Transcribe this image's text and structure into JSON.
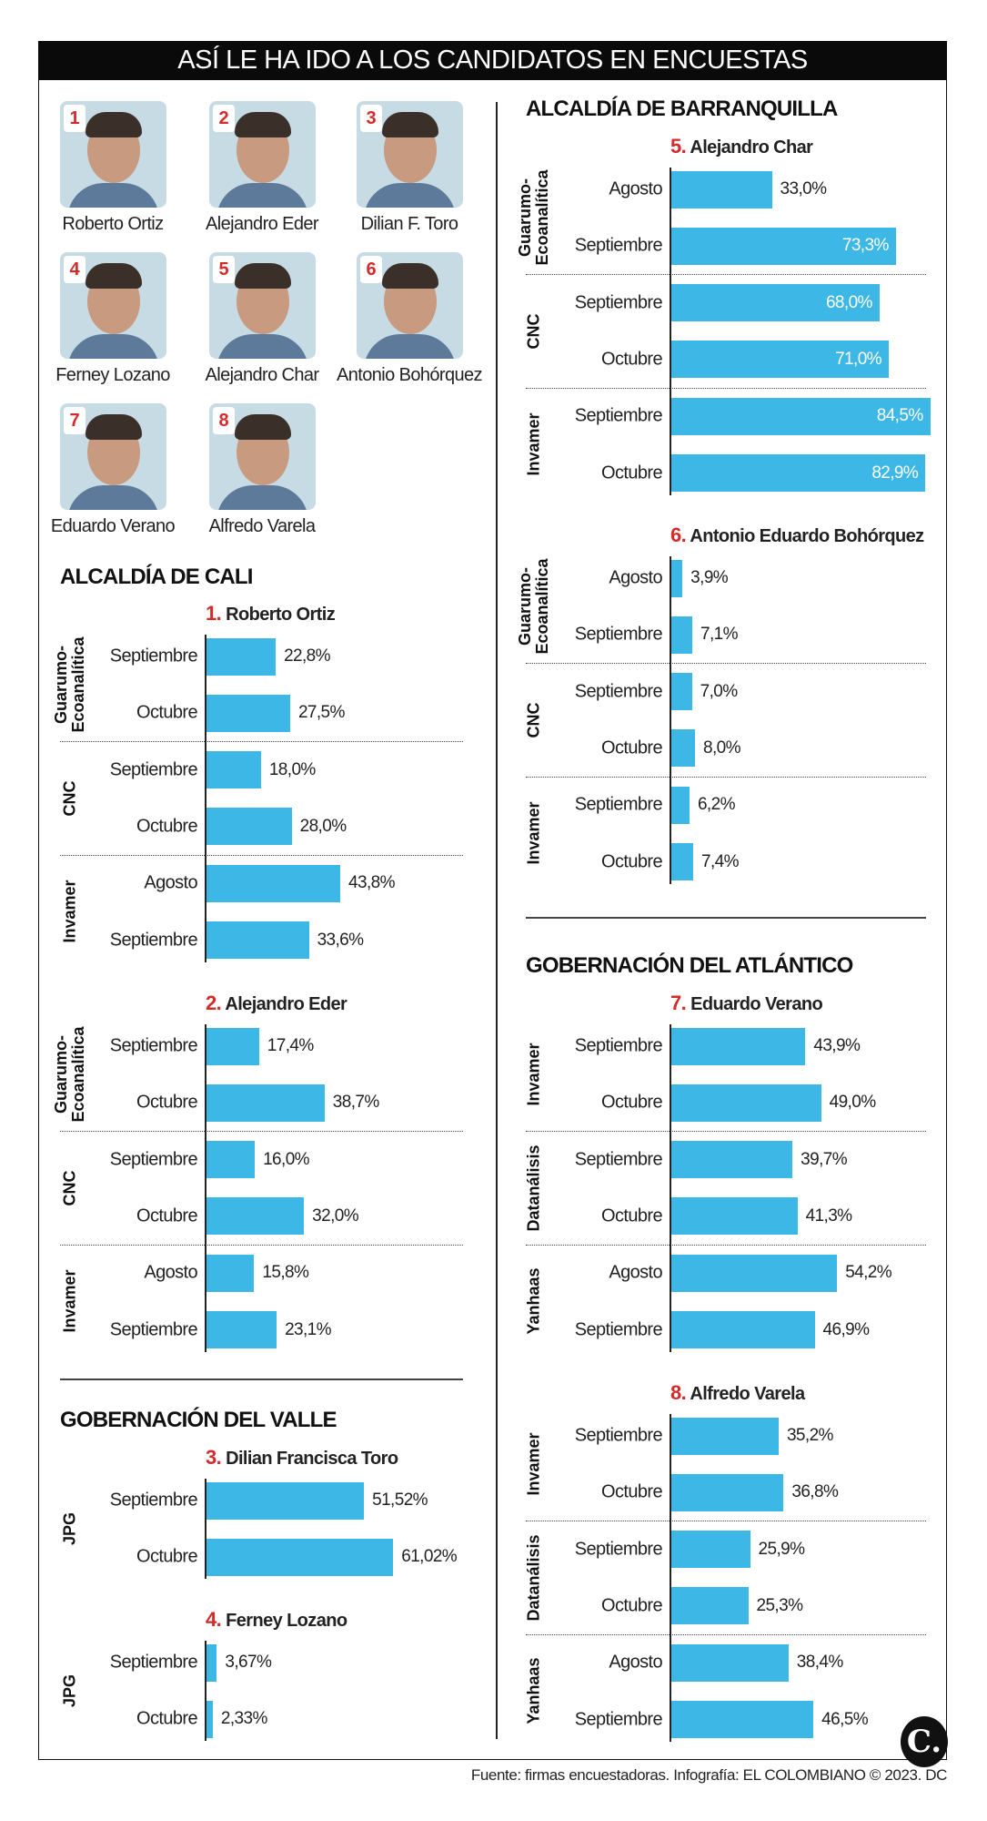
{
  "title": "ASÍ LE HA IDO A LOS CANDIDATOS EN ENCUESTAS",
  "candidates": [
    {
      "num": "1",
      "name": "Roberto Ortiz"
    },
    {
      "num": "2",
      "name": "Alejandro Eder"
    },
    {
      "num": "3",
      "name": "Dilian F. Toro"
    },
    {
      "num": "4",
      "name": "Ferney Lozano"
    },
    {
      "num": "5",
      "name": "Alejandro Char"
    },
    {
      "num": "6",
      "name": "Antonio Bohórquez"
    },
    {
      "num": "7",
      "name": "Eduardo Verano"
    },
    {
      "num": "8",
      "name": "Alfredo Varela"
    }
  ],
  "headings": {
    "cali": "ALCALDÍA DE CALI",
    "valle": "GOBERNACIÓN DEL VALLE",
    "barranquilla": "ALCALDÍA DE BARRANQUILLA",
    "atlantico": "GOBERNACIÓN DEL ATLÁNTICO"
  },
  "chart_data": [
    {
      "type": "bar",
      "section": "cali",
      "num": "1.",
      "title": "Roberto Ortiz",
      "groups": [
        {
          "pollster": "Guarumo-\nEcoanalítica",
          "rows": [
            {
              "month": "Septiembre",
              "value": 22.8,
              "label": "22,8%"
            },
            {
              "month": "Octubre",
              "value": 27.5,
              "label": "27,5%"
            }
          ]
        },
        {
          "pollster": "CNC",
          "rows": [
            {
              "month": "Septiembre",
              "value": 18.0,
              "label": "18,0%"
            },
            {
              "month": "Octubre",
              "value": 28.0,
              "label": "28,0%"
            }
          ]
        },
        {
          "pollster": "Invamer",
          "rows": [
            {
              "month": "Agosto",
              "value": 43.8,
              "label": "43,8%"
            },
            {
              "month": "Septiembre",
              "value": 33.6,
              "label": "33,6%"
            }
          ]
        }
      ]
    },
    {
      "type": "bar",
      "section": "cali",
      "num": "2.",
      "title": "Alejandro Eder",
      "groups": [
        {
          "pollster": "Guarumo-\nEcoanalítica",
          "rows": [
            {
              "month": "Septiembre",
              "value": 17.4,
              "label": "17,4%"
            },
            {
              "month": "Octubre",
              "value": 38.7,
              "label": "38,7%"
            }
          ]
        },
        {
          "pollster": "CNC",
          "rows": [
            {
              "month": "Septiembre",
              "value": 16.0,
              "label": "16,0%"
            },
            {
              "month": "Octubre",
              "value": 32.0,
              "label": "32,0%"
            }
          ]
        },
        {
          "pollster": "Invamer",
          "rows": [
            {
              "month": "Agosto",
              "value": 15.8,
              "label": "15,8%"
            },
            {
              "month": "Septiembre",
              "value": 23.1,
              "label": "23,1%"
            }
          ]
        }
      ]
    },
    {
      "type": "bar",
      "section": "valle",
      "num": "3.",
      "title": "Dilian Francisca Toro",
      "groups": [
        {
          "pollster": "JPG",
          "rows": [
            {
              "month": "Septiembre",
              "value": 51.52,
              "label": "51,52%"
            },
            {
              "month": "Octubre",
              "value": 61.02,
              "label": "61,02%"
            }
          ]
        }
      ]
    },
    {
      "type": "bar",
      "section": "valle",
      "num": "4.",
      "title": "Ferney Lozano",
      "groups": [
        {
          "pollster": "JPG",
          "rows": [
            {
              "month": "Septiembre",
              "value": 3.67,
              "label": "3,67%"
            },
            {
              "month": "Octubre",
              "value": 2.33,
              "label": "2,33%"
            }
          ]
        }
      ]
    },
    {
      "type": "bar",
      "section": "barranquilla",
      "num": "5.",
      "title": "Alejandro Char",
      "groups": [
        {
          "pollster": "Guarumo-\nEcoanalítica",
          "rows": [
            {
              "month": "Agosto",
              "value": 33.0,
              "label": "33,0%"
            },
            {
              "month": "Septiembre",
              "value": 73.3,
              "label": "73,3%"
            }
          ]
        },
        {
          "pollster": "CNC",
          "rows": [
            {
              "month": "Septiembre",
              "value": 68.0,
              "label": "68,0%"
            },
            {
              "month": "Octubre",
              "value": 71.0,
              "label": "71,0%"
            }
          ]
        },
        {
          "pollster": "Invamer",
          "rows": [
            {
              "month": "Septiembre",
              "value": 84.5,
              "label": "84,5%"
            },
            {
              "month": "Octubre",
              "value": 82.9,
              "label": "82,9%"
            }
          ]
        }
      ]
    },
    {
      "type": "bar",
      "section": "barranquilla",
      "num": "6.",
      "title": "Antonio Eduardo Bohórquez",
      "groups": [
        {
          "pollster": "Guarumo-\nEcoanalítica",
          "rows": [
            {
              "month": "Agosto",
              "value": 3.9,
              "label": "3,9%"
            },
            {
              "month": "Septiembre",
              "value": 7.1,
              "label": "7,1%"
            }
          ]
        },
        {
          "pollster": "CNC",
          "rows": [
            {
              "month": "Septiembre",
              "value": 7.0,
              "label": "7,0%"
            },
            {
              "month": "Octubre",
              "value": 8.0,
              "label": "8,0%"
            }
          ]
        },
        {
          "pollster": "Invamer",
          "rows": [
            {
              "month": "Septiembre",
              "value": 6.2,
              "label": "6,2%"
            },
            {
              "month": "Octubre",
              "value": 7.4,
              "label": "7,4%"
            }
          ]
        }
      ]
    },
    {
      "type": "bar",
      "section": "atlantico",
      "num": "7.",
      "title": "Eduardo Verano",
      "groups": [
        {
          "pollster": "Invamer",
          "rows": [
            {
              "month": "Septiembre",
              "value": 43.9,
              "label": "43,9%"
            },
            {
              "month": "Octubre",
              "value": 49.0,
              "label": "49,0%"
            }
          ]
        },
        {
          "pollster": "Datanálisis",
          "rows": [
            {
              "month": "Septiembre",
              "value": 39.7,
              "label": "39,7%"
            },
            {
              "month": "Octubre",
              "value": 41.3,
              "label": "41,3%"
            }
          ]
        },
        {
          "pollster": "Yanhaas",
          "rows": [
            {
              "month": "Agosto",
              "value": 54.2,
              "label": "54,2%"
            },
            {
              "month": "Septiembre",
              "value": 46.9,
              "label": "46,9%"
            }
          ]
        }
      ]
    },
    {
      "type": "bar",
      "section": "atlantico",
      "num": "8.",
      "title": "Alfredo Varela",
      "groups": [
        {
          "pollster": "Invamer",
          "rows": [
            {
              "month": "Septiembre",
              "value": 35.2,
              "label": "35,2%"
            },
            {
              "month": "Octubre",
              "value": 36.8,
              "label": "36,8%"
            }
          ]
        },
        {
          "pollster": "Datanálisis",
          "rows": [
            {
              "month": "Septiembre",
              "value": 25.9,
              "label": "25,9%"
            },
            {
              "month": "Octubre",
              "value": 25.3,
              "label": "25,3%"
            }
          ]
        },
        {
          "pollster": "Yanhaas",
          "rows": [
            {
              "month": "Agosto",
              "value": 38.4,
              "label": "38,4%"
            },
            {
              "month": "Septiembre",
              "value": 46.5,
              "label": "46,5%"
            }
          ]
        }
      ]
    }
  ],
  "colors": {
    "bar": "#3db8e6",
    "accent": "#d42a2a",
    "titlebar": "#0a0a0a"
  },
  "footer": "Fuente: firmas encuestadoras. Infografía: EL COLOMBIANO © 2023. DC",
  "logo": "C."
}
